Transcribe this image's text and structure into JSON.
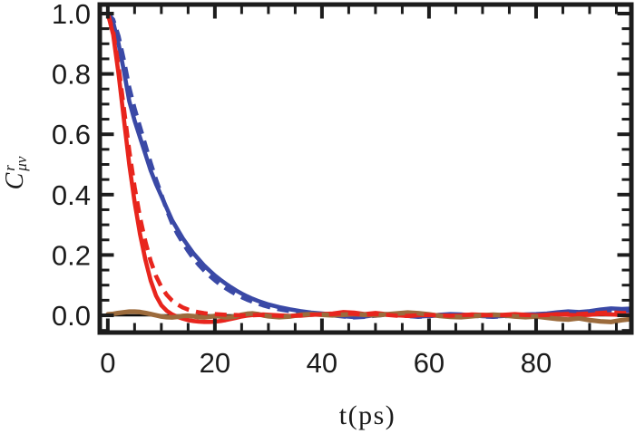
{
  "figure_colors": {
    "frame": "#1c1c1c",
    "tick_label": "#1b1b1b",
    "background": "#ffffff"
  },
  "chart_data": {
    "type": "line",
    "title": "",
    "xlabel": "t(ps)",
    "ylabel": "Cʳμν",
    "ylabel_parts": {
      "base": "C",
      "sup": "r",
      "sub": "μν"
    },
    "xlim": [
      -1.5,
      97.8
    ],
    "ylim": [
      -0.057,
      1.03
    ],
    "grid": false,
    "legend_position": "none",
    "x_major_ticks": [
      0,
      20,
      40,
      60,
      80
    ],
    "x_tick_labels": [
      "0",
      "20",
      "40",
      "60",
      "80"
    ],
    "x_minor_step": 5,
    "y_major_ticks": [
      0.0,
      0.2,
      0.4,
      0.6,
      0.8,
      1.0
    ],
    "y_tick_labels": [
      "0.0",
      "0.2",
      "0.4",
      "0.6",
      "0.8",
      "1.0"
    ],
    "y_minor_step": 0.05,
    "x": [
      0,
      1,
      2,
      3,
      4,
      5,
      6,
      7,
      8,
      9,
      10,
      11,
      12,
      13,
      14,
      15,
      16,
      17,
      18,
      19,
      20,
      21,
      22,
      23,
      24,
      25,
      26,
      27,
      28,
      29,
      30,
      32,
      34,
      36,
      38,
      40,
      42,
      44,
      46,
      48,
      50,
      52,
      54,
      56,
      58,
      60,
      62,
      64,
      66,
      68,
      70,
      72,
      74,
      76,
      78,
      80,
      82,
      84,
      86,
      88,
      90,
      92,
      94,
      96,
      97.5
    ],
    "series": [
      {
        "name": "zero-baseline",
        "style": "solid",
        "color": "#0d0d0d",
        "width": 2.5,
        "x": [
          0,
          97.5
        ],
        "y": [
          0,
          0
        ]
      },
      {
        "name": "blue-solid",
        "style": "solid",
        "color": "#3a49a6",
        "width": 4.6,
        "y": [
          1.0,
          0.97,
          0.9,
          0.81,
          0.71,
          0.645,
          0.59,
          0.535,
          0.48,
          0.435,
          0.395,
          0.355,
          0.315,
          0.285,
          0.255,
          0.23,
          0.205,
          0.185,
          0.165,
          0.148,
          0.132,
          0.118,
          0.105,
          0.093,
          0.082,
          0.072,
          0.063,
          0.055,
          0.048,
          0.042,
          0.036,
          0.027,
          0.02,
          0.014,
          0.009,
          0.006,
          0.003,
          -0.003,
          -0.006,
          -0.004,
          0.001,
          0.004,
          0.002,
          -0.002,
          -0.004,
          -0.002,
          0.002,
          0.004,
          0.003,
          0.0,
          -0.003,
          -0.004,
          -0.002,
          0.001,
          0.003,
          0.004,
          0.006,
          0.01,
          0.013,
          0.011,
          0.014,
          0.019,
          0.023,
          0.021,
          0.022
        ]
      },
      {
        "name": "blue-dashed",
        "style": "dashed",
        "color": "#3a49a6",
        "width": 4.6,
        "y": [
          1.0,
          0.98,
          0.925,
          0.845,
          0.755,
          0.685,
          0.625,
          0.565,
          0.505,
          0.45,
          0.4,
          0.35,
          0.305,
          0.27,
          0.24,
          0.213,
          0.188,
          0.167,
          0.148,
          0.131,
          0.116,
          0.102,
          0.09,
          0.079,
          0.069,
          0.06,
          0.052,
          0.045,
          0.039,
          0.033,
          0.028,
          0.02,
          0.014,
          0.009,
          0.005,
          0.002,
          0.0,
          -0.004,
          -0.007,
          -0.005,
          -0.001,
          0.002,
          0.001,
          -0.002,
          -0.005,
          -0.003,
          0.0,
          0.002,
          0.002,
          -0.001,
          -0.004,
          -0.005,
          -0.003,
          -0.001,
          0.001,
          0.002,
          0.004,
          0.007,
          0.01,
          0.008,
          0.01,
          0.014,
          0.017,
          0.015,
          0.015
        ]
      },
      {
        "name": "red-solid",
        "style": "solid",
        "color": "#e8251d",
        "width": 4.6,
        "y": [
          1.0,
          0.93,
          0.8,
          0.65,
          0.5,
          0.375,
          0.27,
          0.185,
          0.115,
          0.065,
          0.033,
          0.015,
          0.003,
          -0.005,
          -0.011,
          -0.016,
          -0.019,
          -0.021,
          -0.022,
          -0.022,
          -0.021,
          -0.019,
          -0.016,
          -0.012,
          -0.008,
          -0.004,
          -0.001,
          0.001,
          0.002,
          0.003,
          0.002,
          0.0,
          -0.002,
          -0.001,
          0.002,
          0.004,
          0.006,
          0.011,
          0.009,
          0.004,
          0.008,
          0.004,
          0.0,
          -0.002,
          0.0,
          0.002,
          0.0,
          -0.002,
          0.0,
          0.003,
          0.002,
          0.0,
          0.002,
          0.004,
          0.002,
          0.0,
          0.002,
          0.004,
          0.002,
          0.0,
          0.002,
          0.005,
          0.003,
          0.001,
          0.001
        ]
      },
      {
        "name": "brown-solid",
        "style": "solid",
        "color": "#9c6b3c",
        "width": 5.2,
        "y": [
          0.003,
          0.005,
          0.008,
          0.01,
          0.012,
          0.012,
          0.011,
          0.008,
          0.004,
          0.0,
          -0.004,
          -0.006,
          -0.007,
          -0.005,
          -0.002,
          -0.001,
          -0.003,
          -0.006,
          -0.007,
          -0.005,
          -0.002,
          -0.004,
          -0.007,
          -0.006,
          -0.003,
          0.002,
          0.005,
          0.006,
          0.004,
          0.0,
          -0.003,
          -0.006,
          -0.004,
          0.002,
          0.004,
          0.002,
          0.0,
          0.002,
          0.004,
          0.002,
          0.0,
          0.003,
          0.006,
          0.009,
          0.007,
          0.003,
          -0.002,
          -0.005,
          -0.006,
          -0.003,
          0.0,
          0.002,
          0.0,
          -0.004,
          -0.006,
          -0.004,
          -0.008,
          -0.012,
          -0.014,
          -0.01,
          -0.016,
          -0.02,
          -0.022,
          -0.016,
          -0.013
        ]
      },
      {
        "name": "red-dashed",
        "style": "dashed",
        "color": "#e8251d",
        "width": 4.6,
        "y": [
          1.0,
          0.94,
          0.825,
          0.685,
          0.545,
          0.425,
          0.325,
          0.245,
          0.18,
          0.13,
          0.094,
          0.068,
          0.049,
          0.036,
          0.026,
          0.019,
          0.014,
          0.01,
          0.007,
          0.005,
          0.004,
          0.003,
          0.002,
          0.001,
          0.001,
          0.0,
          0.0,
          0.0,
          0.001,
          0.001,
          0.0,
          -0.001,
          -0.002,
          0.0,
          0.002,
          0.003,
          0.004,
          0.007,
          0.005,
          0.002,
          0.005,
          0.002,
          -0.001,
          -0.002,
          0.0,
          0.001,
          0.0,
          -0.001,
          0.001,
          0.002,
          0.001,
          0.0,
          0.001,
          0.003,
          0.001,
          0.0,
          0.001,
          0.003,
          0.005,
          0.004,
          0.006,
          0.008,
          0.01,
          0.008,
          0.008
        ]
      }
    ]
  }
}
